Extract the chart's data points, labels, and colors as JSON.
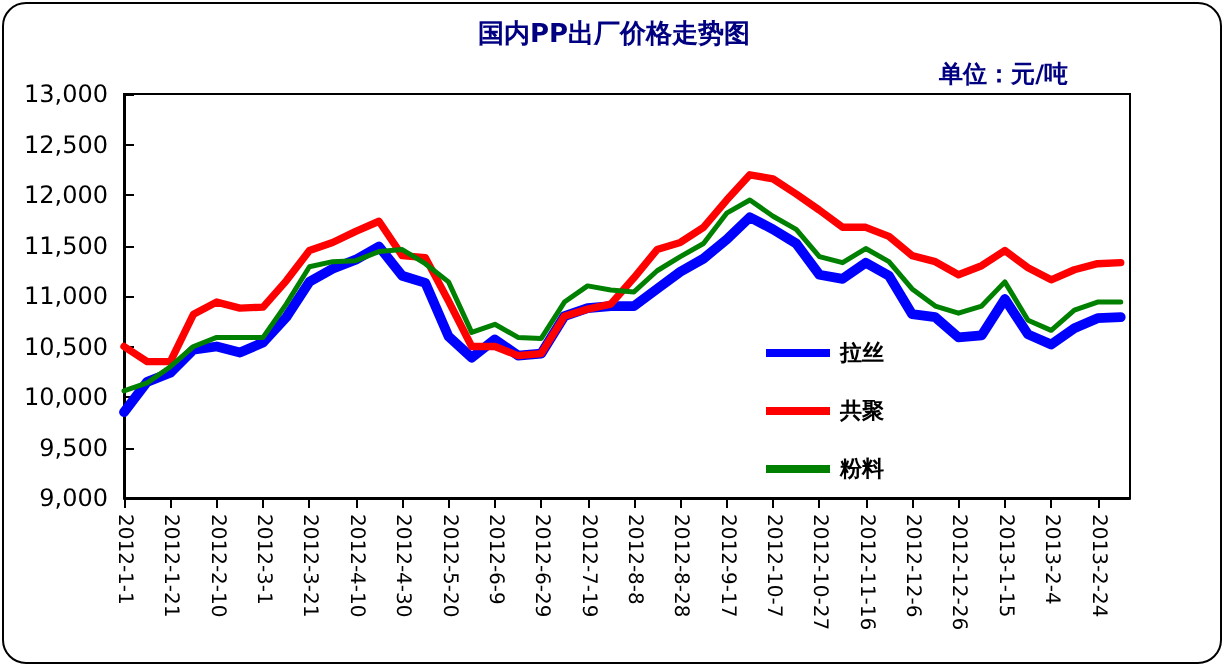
{
  "chart_data": {
    "type": "line",
    "title": "国内PP出厂价格走势图",
    "subtitle": "单位：元/吨",
    "x": [
      "2012-01-01",
      "2012-01-11",
      "2012-01-21",
      "2012-01-31",
      "2012-02-10",
      "2012-02-20",
      "2012-03-01",
      "2012-03-11",
      "2012-03-21",
      "2012-03-31",
      "2012-04-10",
      "2012-04-20",
      "2012-04-30",
      "2012-05-10",
      "2012-05-20",
      "2012-05-30",
      "2012-06-09",
      "2012-06-19",
      "2012-06-29",
      "2012-07-09",
      "2012-07-19",
      "2012-07-29",
      "2012-08-08",
      "2012-08-18",
      "2012-08-28",
      "2012-09-07",
      "2012-09-17",
      "2012-09-27",
      "2012-10-07",
      "2012-10-17",
      "2012-10-27",
      "2012-11-06",
      "2012-11-16",
      "2012-11-26",
      "2012-12-06",
      "2012-12-16",
      "2012-12-26",
      "2013-01-05",
      "2013-01-15",
      "2013-01-25",
      "2013-02-04",
      "2013-02-14",
      "2013-02-24",
      "2013-03-06"
    ],
    "series": [
      {
        "name": "拉丝",
        "color": "#0000ff",
        "values": [
          9850,
          10150,
          10240,
          10470,
          10500,
          10440,
          10540,
          10790,
          11140,
          11270,
          11360,
          11490,
          11200,
          11130,
          10600,
          10390,
          10570,
          10410,
          10430,
          10800,
          10880,
          10900,
          10900,
          11070,
          11240,
          11370,
          11560,
          11780,
          11660,
          11520,
          11210,
          11170,
          11330,
          11200,
          10820,
          10790,
          10590,
          10610,
          10970,
          10620,
          10520,
          10680,
          10780,
          10790
        ]
      },
      {
        "name": "共聚",
        "color": "#ff0000",
        "values": [
          10500,
          10350,
          10350,
          10820,
          10940,
          10880,
          10890,
          11150,
          11450,
          11530,
          11640,
          11740,
          11400,
          11380,
          10950,
          10500,
          10500,
          10410,
          10430,
          10800,
          10870,
          10920,
          11180,
          11460,
          11530,
          11680,
          11950,
          12200,
          12160,
          12010,
          11850,
          11680,
          11680,
          11590,
          11400,
          11340,
          11210,
          11300,
          11450,
          11280,
          11160,
          11260,
          11320,
          11330
        ]
      },
      {
        "name": "粉料",
        "color": "#008000",
        "values": [
          10060,
          10140,
          10300,
          10500,
          10590,
          10590,
          10590,
          10920,
          11290,
          11340,
          11350,
          11440,
          11460,
          11320,
          11140,
          10640,
          10720,
          10590,
          10580,
          10940,
          11100,
          11060,
          11040,
          11250,
          11390,
          11520,
          11820,
          11950,
          11790,
          11660,
          11390,
          11330,
          11470,
          11340,
          11070,
          10900,
          10830,
          10900,
          11140,
          10760,
          10660,
          10860,
          10940,
          10940
        ]
      }
    ],
    "xlim": [
      "2012-01-01",
      "2013-03-10"
    ],
    "xticks": [
      {
        "value": "2012-01-01",
        "label": "2012-1-1"
      },
      {
        "value": "2012-01-21",
        "label": "2012-1-21"
      },
      {
        "value": "2012-02-10",
        "label": "2012-2-10"
      },
      {
        "value": "2012-03-01",
        "label": "2012-3-1"
      },
      {
        "value": "2012-03-21",
        "label": "2012-3-21"
      },
      {
        "value": "2012-04-10",
        "label": "2012-4-10"
      },
      {
        "value": "2012-04-30",
        "label": "2012-4-30"
      },
      {
        "value": "2012-05-20",
        "label": "2012-5-20"
      },
      {
        "value": "2012-06-09",
        "label": "2012-6-9"
      },
      {
        "value": "2012-06-29",
        "label": "2012-6-29"
      },
      {
        "value": "2012-07-19",
        "label": "2012-7-19"
      },
      {
        "value": "2012-08-08",
        "label": "2012-8-8"
      },
      {
        "value": "2012-08-28",
        "label": "2012-8-28"
      },
      {
        "value": "2012-09-17",
        "label": "2012-9-17"
      },
      {
        "value": "2012-10-07",
        "label": "2012-10-7"
      },
      {
        "value": "2012-10-27",
        "label": "2012-10-27"
      },
      {
        "value": "2012-11-16",
        "label": "2012-11-16"
      },
      {
        "value": "2012-12-06",
        "label": "2012-12-6"
      },
      {
        "value": "2012-12-26",
        "label": "2012-12-26"
      },
      {
        "value": "2013-01-15",
        "label": "2013-1-15"
      },
      {
        "value": "2013-02-04",
        "label": "2013-2-4"
      },
      {
        "value": "2013-02-24",
        "label": "2013-2-24"
      }
    ],
    "ylim": [
      9000,
      13000
    ],
    "yticks": [
      {
        "value": 9000,
        "label": "9,000"
      },
      {
        "value": 9500,
        "label": "9,500"
      },
      {
        "value": 10000,
        "label": "10,000"
      },
      {
        "value": 10500,
        "label": "10,500"
      },
      {
        "value": 11000,
        "label": "11,000"
      },
      {
        "value": 11500,
        "label": "11,500"
      },
      {
        "value": 12000,
        "label": "12,000"
      },
      {
        "value": 12500,
        "label": "12,500"
      },
      {
        "value": 13000,
        "label": "13,000"
      }
    ],
    "grid": false,
    "legend": "right",
    "marker": "none",
    "line_style": "solid"
  }
}
